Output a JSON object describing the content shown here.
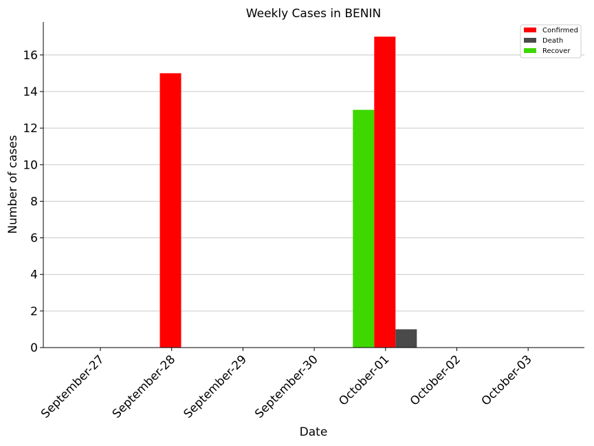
{
  "chart_data": {
    "type": "bar",
    "title": "Weekly Cases in BENIN",
    "xlabel": "Date",
    "ylabel": "Number of cases",
    "categories": [
      "September-27",
      "September-28",
      "September-29",
      "September-30",
      "October-01",
      "October-02",
      "October-03"
    ],
    "series": [
      {
        "name": "Recover",
        "color": "#3fd700",
        "values": [
          0,
          0,
          0,
          0,
          13,
          0,
          0
        ]
      },
      {
        "name": "Confirmed",
        "color": "#ff0000",
        "values": [
          0,
          15,
          0,
          0,
          17,
          0,
          0
        ]
      },
      {
        "name": "Death",
        "color": "#4a4a4a",
        "values": [
          0,
          0,
          0,
          0,
          1,
          0,
          0
        ]
      }
    ],
    "legend_order": [
      "Confirmed",
      "Death",
      "Recover"
    ],
    "legend_position": "top-right",
    "ylim": [
      0,
      17.8
    ],
    "yticks": [
      0,
      2,
      4,
      6,
      8,
      10,
      12,
      14,
      16
    ],
    "grid": "horizontal"
  }
}
